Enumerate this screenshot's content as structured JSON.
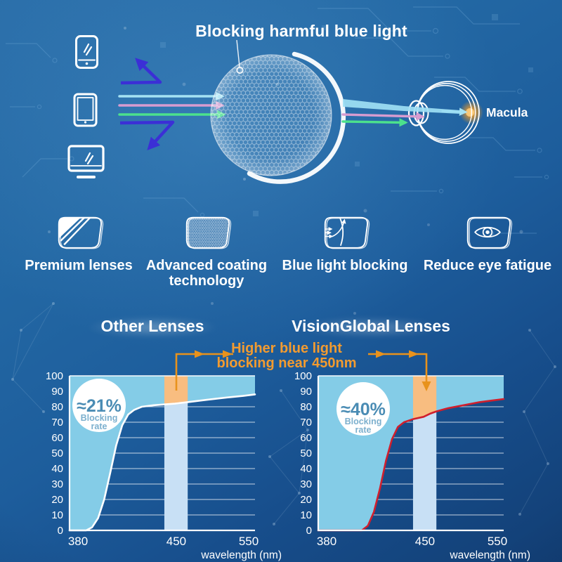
{
  "hero": {
    "title": "Blocking harmful blue light",
    "macula_label": "Macula",
    "icons": {
      "devices": [
        "smartphone-icon",
        "tablet-icon",
        "monitor-icon"
      ],
      "lens": "coated-lens-icon",
      "eye": "eye-diagram-icon"
    },
    "colors": {
      "blocked_blue_ray": "#3b2fd6",
      "cyan_ray": "#a5e2f3",
      "pink_ray": "#d79cd0",
      "green_ray": "#4ce18c",
      "macula_glow": "#f09a25"
    }
  },
  "features": [
    {
      "label": "Premium lenses",
      "icon": "premium-lens-icon"
    },
    {
      "label": "Advanced coating technology",
      "icon": "coating-lens-icon"
    },
    {
      "label": "Blue light blocking",
      "icon": "blue-light-blocking-lens-icon"
    },
    {
      "label": "Reduce eye fatigue",
      "icon": "reduce-eye-fatigue-icon"
    }
  ],
  "comparison": {
    "annotation": {
      "line1": "Higher blue light",
      "line2": "blocking near 450nm",
      "color": "#f29b30",
      "connector_color": "#e8921c"
    }
  },
  "chart_data": [
    {
      "type": "area",
      "title": "Other Lenses",
      "badge_value": "≈21%",
      "badge_label": [
        "Blocking",
        "rate"
      ],
      "xlabel": "wavelength (nm)",
      "x_ticks": [
        "380",
        "450",
        "550"
      ],
      "x_tick_nm": [
        380,
        450,
        550
      ],
      "y_ticks": [
        0,
        10,
        20,
        30,
        40,
        50,
        60,
        70,
        80,
        90,
        100
      ],
      "ylim": [
        0,
        100
      ],
      "xlim": [
        380,
        550
      ],
      "grid": true,
      "legend": "none",
      "highlight_band_nm": [
        443,
        466
      ],
      "colors": {
        "fill": "#84cce7",
        "curve": "#ffffff",
        "band_below": "#c8e0f5",
        "band_above": "#f8bd80"
      },
      "series": [
        {
          "name": "blocking rate (%)",
          "points": [
            [
              380,
              0
            ],
            [
              391,
              0
            ],
            [
              395,
              2
            ],
            [
              399,
              8
            ],
            [
              403,
              20
            ],
            [
              407,
              37
            ],
            [
              411,
              55
            ],
            [
              415,
              68
            ],
            [
              419,
              75
            ],
            [
              423,
              78
            ],
            [
              428,
              80
            ],
            [
              436,
              81
            ],
            [
              450,
              82
            ],
            [
              466,
              83
            ],
            [
              490,
              84.5
            ],
            [
              515,
              86
            ],
            [
              535,
              87
            ],
            [
              550,
              88
            ]
          ]
        }
      ]
    },
    {
      "type": "area",
      "title": "VisionGlobal Lenses",
      "badge_value": "≈40%",
      "badge_label": [
        "Blocking",
        "rate"
      ],
      "xlabel": "wavelength (nm)",
      "x_ticks": [
        "380",
        "450",
        "550"
      ],
      "x_tick_nm": [
        380,
        450,
        550
      ],
      "y_ticks": [
        0,
        10,
        20,
        30,
        40,
        50,
        60,
        70,
        80,
        90,
        100
      ],
      "ylim": [
        0,
        100
      ],
      "xlim": [
        380,
        550
      ],
      "grid": true,
      "legend": "none",
      "highlight_band_nm": [
        443,
        466
      ],
      "colors": {
        "fill": "#84cce7",
        "curve": "#d01f2d",
        "band_below": "#c8e0f5",
        "band_above": "#f8bd80"
      },
      "series": [
        {
          "name": "blocking rate (%)",
          "points": [
            [
              380,
              0
            ],
            [
              409,
              0
            ],
            [
              413,
              3
            ],
            [
              417,
              12
            ],
            [
              421,
              27
            ],
            [
              425,
              45
            ],
            [
              429,
              59
            ],
            [
              433,
              67
            ],
            [
              437,
              70
            ],
            [
              443,
              72
            ],
            [
              450,
              73.5
            ],
            [
              458,
              75.5
            ],
            [
              466,
              77
            ],
            [
              480,
              79
            ],
            [
              500,
              81
            ],
            [
              520,
              83
            ],
            [
              535,
              84
            ],
            [
              550,
              85
            ]
          ]
        }
      ]
    }
  ]
}
